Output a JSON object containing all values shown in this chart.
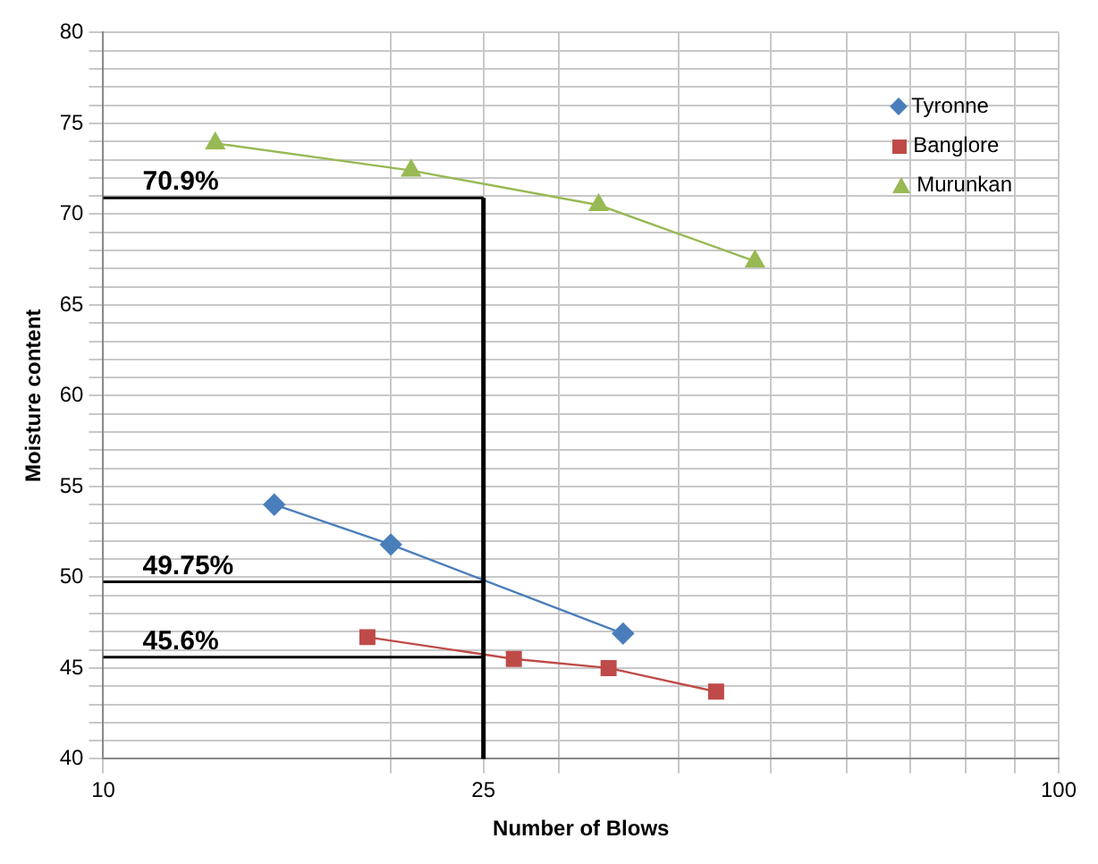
{
  "chart_data": {
    "type": "line",
    "xlabel": "Number of Blows",
    "ylabel": "Moisture content",
    "log": "x",
    "xlim": [
      10,
      100
    ],
    "xticks": [
      10,
      {
        "value": 20,
        "label": null
      },
      25,
      {
        "value": 30,
        "label": null
      },
      {
        "value": 40,
        "label": null
      },
      {
        "value": 50,
        "label": null
      },
      {
        "value": 60,
        "label": null
      },
      {
        "value": 70,
        "label": null
      },
      {
        "value": 80,
        "label": null
      },
      {
        "value": 90,
        "label": null
      },
      100
    ],
    "ylim": [
      40,
      80
    ],
    "yticks": [
      40,
      {
        "value": 41,
        "label": null
      },
      {
        "value": 42,
        "label": null
      },
      {
        "value": 43,
        "label": null
      },
      {
        "value": 44,
        "label": null
      },
      45,
      {
        "value": 46,
        "label": null
      },
      {
        "value": 47,
        "label": null
      },
      {
        "value": 48,
        "label": null
      },
      {
        "value": 49,
        "label": null
      },
      50,
      {
        "value": 51,
        "label": null
      },
      {
        "value": 52,
        "label": null
      },
      {
        "value": 53,
        "label": null
      },
      {
        "value": 54,
        "label": null
      },
      55,
      {
        "value": 56,
        "label": null
      },
      {
        "value": 57,
        "label": null
      },
      {
        "value": 58,
        "label": null
      },
      {
        "value": 59,
        "label": null
      },
      60,
      {
        "value": 61,
        "label": null
      },
      {
        "value": 62,
        "label": null
      },
      {
        "value": 63,
        "label": null
      },
      {
        "value": 64,
        "label": null
      },
      65,
      {
        "value": 66,
        "label": null
      },
      {
        "value": 67,
        "label": null
      },
      {
        "value": 68,
        "label": null
      },
      {
        "value": 69,
        "label": null
      },
      70,
      {
        "value": 71,
        "label": null
      },
      {
        "value": 72,
        "label": null
      },
      {
        "value": 73,
        "label": null
      },
      {
        "value": 74,
        "label": null
      },
      75,
      {
        "value": 76,
        "label": null
      },
      {
        "value": 77,
        "label": null
      },
      {
        "value": 78,
        "label": null
      },
      {
        "value": 79,
        "label": null
      },
      80
    ],
    "grid": true,
    "legend": "top right",
    "series": [
      {
        "name": "Tyronne",
        "color": "#4a7ebb",
        "marker": "diamond",
        "x": [
          15.1,
          20,
          35
        ],
        "values": [
          54.0,
          51.8,
          46.9
        ]
      },
      {
        "name": "Banglore",
        "color": "#be4b48",
        "marker": "square",
        "x": [
          18.9,
          26.9,
          33.8,
          43.8
        ],
        "values": [
          46.7,
          45.5,
          45.0,
          43.7
        ]
      },
      {
        "name": "Murunkan",
        "color": "#98b954",
        "marker": "triangle",
        "x": [
          13.1,
          21,
          33,
          48.1
        ],
        "values": [
          73.9,
          72.4,
          70.5,
          67.4
        ]
      }
    ],
    "ref_lines": [
      {
        "axis": "y",
        "value": 70.9,
        "label": "70.9%",
        "color": "#000000"
      },
      {
        "axis": "y",
        "value": 49.75,
        "label": "49.75%",
        "color": "#000000"
      },
      {
        "axis": "y",
        "value": 45.6,
        "label": "45.6%",
        "color": "#000000"
      },
      {
        "axis": "x",
        "value": 25,
        "color": "#000000"
      }
    ]
  }
}
